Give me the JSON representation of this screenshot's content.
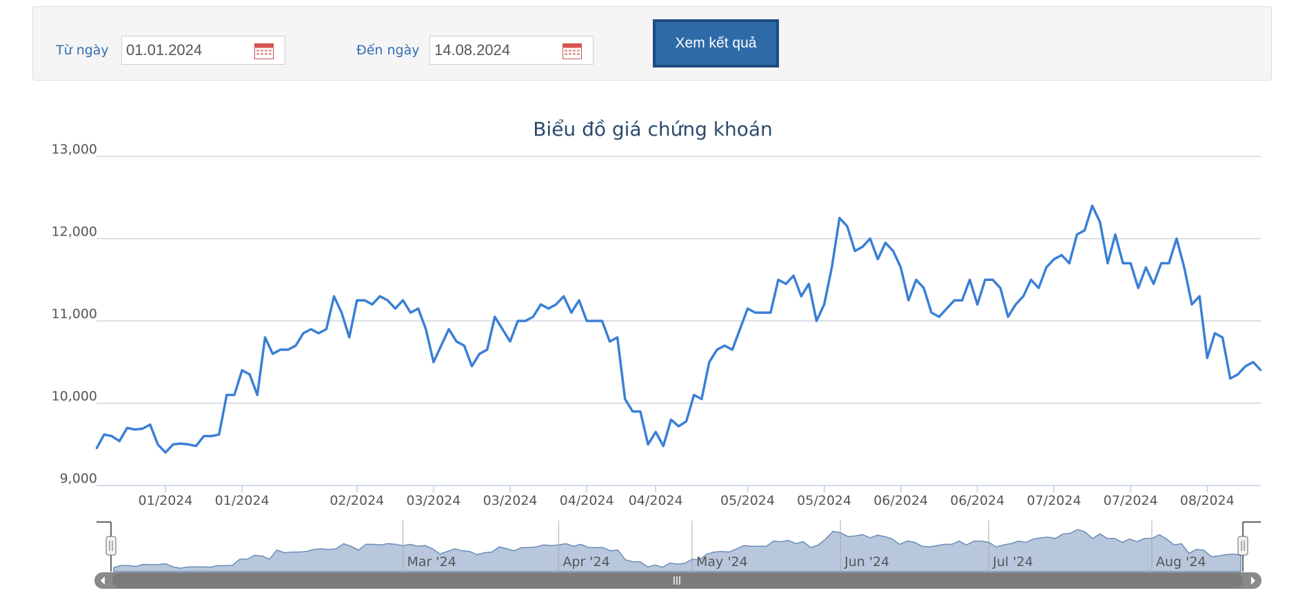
{
  "filter": {
    "from_label": "Từ ngày",
    "from_value": "01.01.2024",
    "to_label": "Đến ngày",
    "to_value": "14.08.2024",
    "submit_label": "Xem kết quả",
    "calendar_icon": "calendar-icon"
  },
  "chart_data": {
    "type": "line",
    "title": "Biểu đồ giá chứng khoán",
    "xlabel": "",
    "ylabel": "",
    "ylim": [
      9000,
      13000
    ],
    "yticks": [
      "13,000",
      "12,000",
      "11,000",
      "10,000",
      "9,000"
    ],
    "ytick_values": [
      13000,
      12000,
      11000,
      10000,
      9000
    ],
    "xtick_labels": [
      "01/2024",
      "01/2024",
      "02/2024",
      "03/2024",
      "03/2024",
      "04/2024",
      "04/2024",
      "05/2024",
      "05/2024",
      "06/2024",
      "06/2024",
      "07/2024",
      "07/2024",
      "08/2024"
    ],
    "xtick_index": [
      9,
      19,
      34,
      44,
      54,
      64,
      73,
      85,
      95,
      105,
      115,
      125,
      135,
      145
    ],
    "grid": true,
    "series": [
      {
        "color": "#3a7fd5",
        "values": [
          9450,
          9620,
          9600,
          9540,
          9700,
          9680,
          9690,
          9740,
          9500,
          9400,
          9500,
          9510,
          9500,
          9480,
          9600,
          9600,
          9620,
          10100,
          10100,
          10400,
          10350,
          10100,
          10800,
          10600,
          10650,
          10650,
          10700,
          10850,
          10900,
          10850,
          10900,
          11300,
          11100,
          10800,
          11250,
          11250,
          11200,
          11300,
          11250,
          11150,
          11250,
          11100,
          11150,
          10900,
          10500,
          10700,
          10900,
          10750,
          10700,
          10450,
          10600,
          10650,
          11050,
          10900,
          10750,
          11000,
          11000,
          11050,
          11200,
          11150,
          11200,
          11300,
          11100,
          11250,
          11000,
          11000,
          11000,
          10750,
          10800,
          10050,
          9900,
          9900,
          9500,
          9650,
          9480,
          9800,
          9720,
          9780,
          10100,
          10050,
          10500,
          10650,
          10700,
          10650,
          10900,
          11150,
          11100,
          11100,
          11100,
          11500,
          11450,
          11550,
          11300,
          11450,
          11000,
          11200,
          11650,
          12250,
          12150,
          11850,
          11900,
          12000,
          11750,
          11950,
          11850,
          11650,
          11250,
          11500,
          11400,
          11100,
          11050,
          11150,
          11250,
          11250,
          11500,
          11200,
          11500,
          11500,
          11400,
          11050,
          11200,
          11300,
          11500,
          11400,
          11650,
          11750,
          11800,
          11700,
          12050,
          12100,
          12400,
          12200,
          11700,
          12050,
          11700,
          11700,
          11400,
          11650,
          11450,
          11700,
          11700,
          12000,
          11650,
          11200,
          11300,
          10550,
          10850,
          10800,
          10300,
          10350,
          10450,
          10500,
          10400
        ]
      }
    ],
    "navigator": {
      "labels": [
        "Mar '24",
        "Apr '24",
        "May '24",
        "Jun '24",
        "Jul '24",
        "Aug '24"
      ],
      "label_index": [
        39,
        60,
        78,
        98,
        118,
        140
      ]
    }
  }
}
